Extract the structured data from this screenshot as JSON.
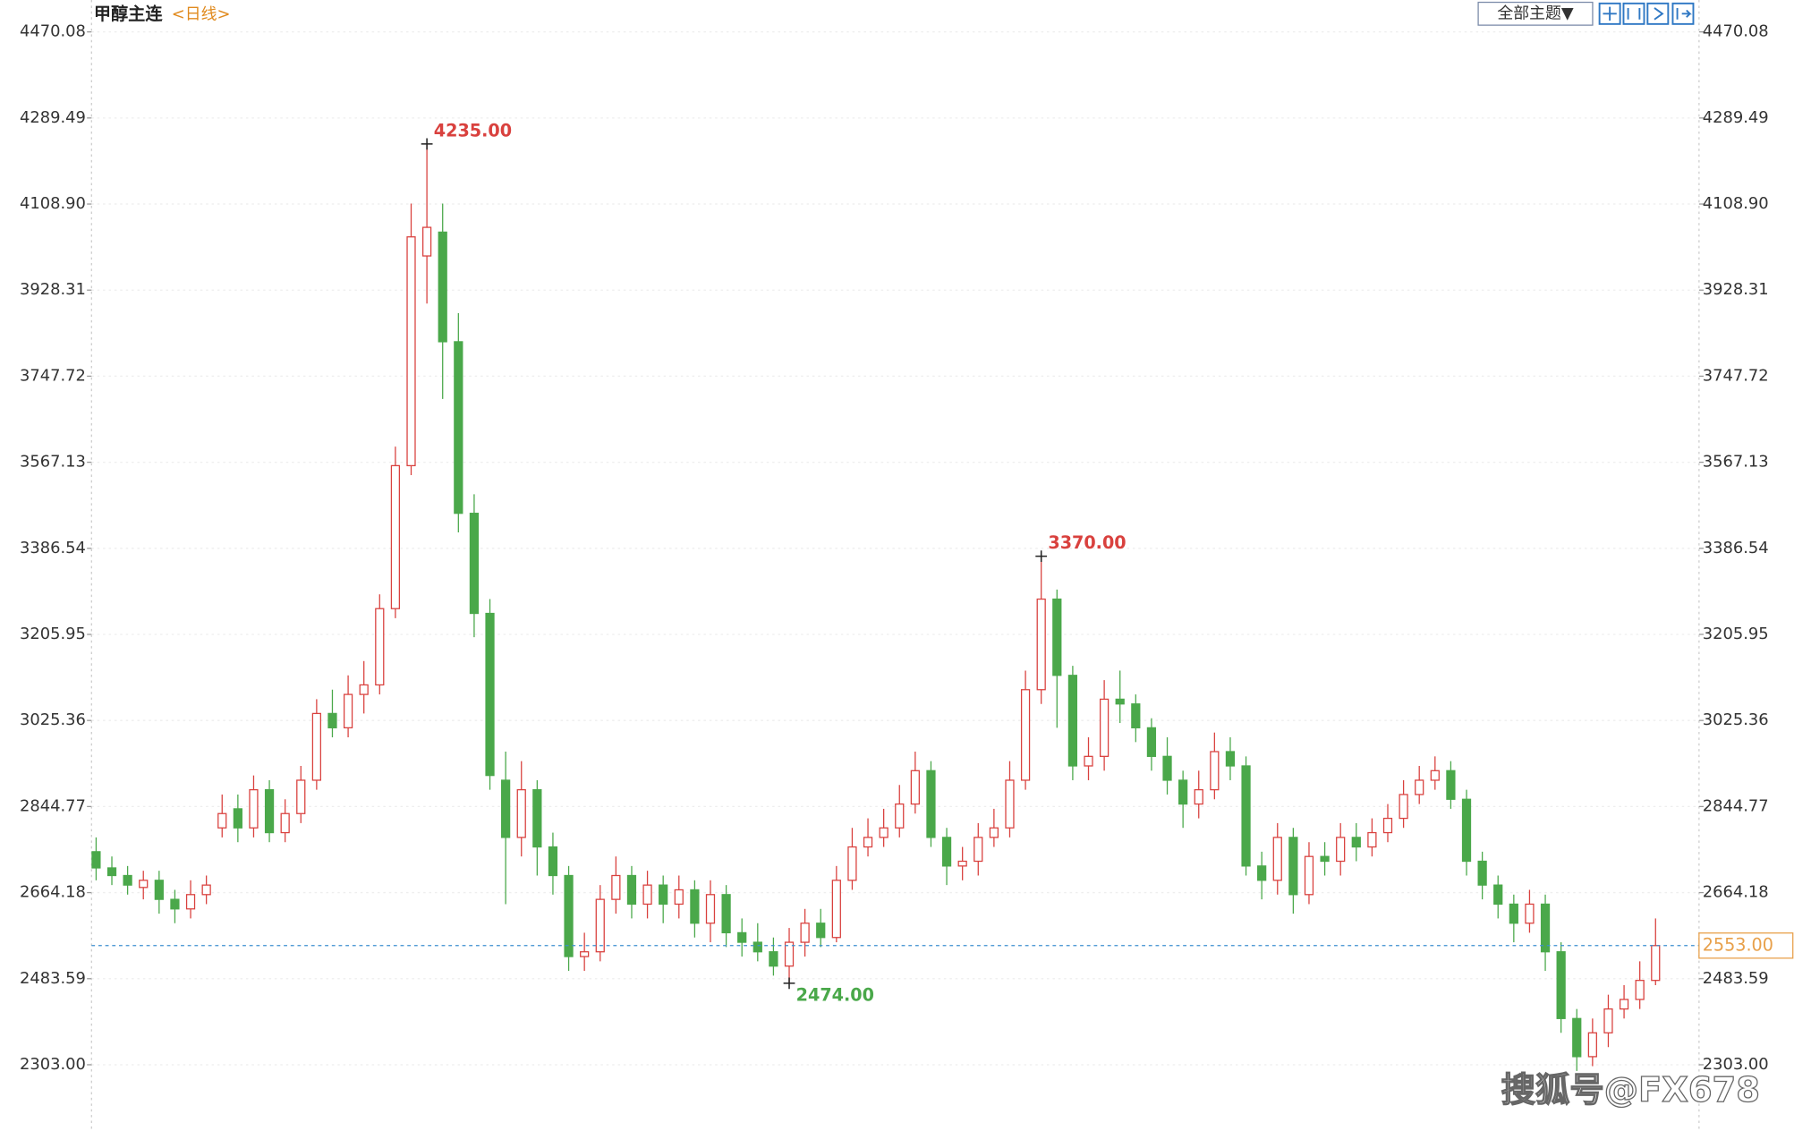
{
  "chart_data": {
    "type": "candlestick",
    "title": "甲醇主连",
    "period": "<日线>",
    "toolbar": "全部主题▼",
    "watermark": "搜狐号@FX678",
    "up_color": "#d9413e",
    "down_color": "#4aa84a",
    "grid": true,
    "ylim": [
      2164,
      4537
    ],
    "yticks": [
      4470.08,
      4289.49,
      {
        "value": 4108.9,
        "label": "4108.90"
      },
      3928.31,
      3747.72,
      3567.13,
      3386.54,
      3205.95,
      3025.36,
      2844.77,
      2664.18,
      2483.59,
      {
        "value": 2303,
        "label": "2303.00"
      }
    ],
    "open": [
      2750,
      2716,
      2700,
      2675,
      2690,
      2650,
      2630,
      2660,
      2800,
      2840,
      2800,
      2880,
      2790,
      2830,
      2900,
      3040,
      3010,
      3080,
      3100,
      3260,
      3560,
      4000,
      4050,
      3820,
      3460,
      3250,
      2900,
      2780,
      2880,
      2760,
      2700,
      2530,
      2540,
      2650,
      2700,
      2640,
      2680,
      2640,
      2670,
      2600,
      2660,
      2580,
      2560,
      2540,
      2510,
      2560,
      2600,
      2570,
      2690,
      2760,
      2780,
      2800,
      2850,
      2920,
      2780,
      2720,
      2730,
      2780,
      2800,
      2900,
      3090,
      3280,
      3120,
      2930,
      2950,
      3070,
      3060,
      3010,
      2950,
      2900,
      2850,
      2880,
      2960,
      2930,
      2720,
      2690,
      2780,
      2660,
      2740,
      2730,
      2780,
      2760,
      2790,
      2820,
      2870,
      2900,
      2920,
      2860,
      2730,
      2680,
      2640,
      2600,
      2640,
      2540,
      2400,
      2320,
      2370,
      2420,
      2440,
      2480
    ],
    "high": [
      2780,
      2740,
      2720,
      2710,
      2710,
      2670,
      2690,
      2700,
      2870,
      2870,
      2910,
      2900,
      2860,
      2930,
      3070,
      3090,
      3120,
      3150,
      3290,
      3600,
      4110,
      4235,
      4110,
      3880,
      3500,
      3280,
      2960,
      2940,
      2900,
      2790,
      2720,
      2580,
      2680,
      2740,
      2720,
      2710,
      2700,
      2700,
      2690,
      2690,
      2680,
      2610,
      2600,
      2570,
      2590,
      2630,
      2630,
      2720,
      2800,
      2820,
      2840,
      2890,
      2960,
      2940,
      2800,
      2760,
      2810,
      2840,
      2940,
      3130,
      3370,
      3300,
      3140,
      2990,
      3110,
      3130,
      3080,
      3030,
      2990,
      2920,
      2920,
      3000,
      2990,
      2950,
      2750,
      2810,
      2800,
      2770,
      2770,
      2810,
      2810,
      2820,
      2850,
      2900,
      2930,
      2950,
      2940,
      2880,
      2750,
      2700,
      2660,
      2670,
      2660,
      2560,
      2420,
      2400,
      2450,
      2470,
      2520,
      2610
    ],
    "low": [
      2690,
      2680,
      2660,
      2650,
      2620,
      2600,
      2610,
      2640,
      2780,
      2770,
      2780,
      2770,
      2770,
      2810,
      2880,
      2990,
      2990,
      3040,
      3080,
      3240,
      3540,
      3900,
      3700,
      3420,
      3200,
      2880,
      2640,
      2740,
      2700,
      2660,
      2500,
      2500,
      2520,
      2620,
      2610,
      2610,
      2600,
      2610,
      2570,
      2560,
      2550,
      2530,
      2520,
      2490,
      2474,
      2530,
      2550,
      2560,
      2670,
      2740,
      2760,
      2780,
      2830,
      2760,
      2680,
      2690,
      2700,
      2760,
      2780,
      2880,
      3060,
      3010,
      2900,
      2900,
      2920,
      3020,
      2980,
      2920,
      2870,
      2800,
      2820,
      2860,
      2900,
      2700,
      2650,
      2660,
      2620,
      2640,
      2700,
      2700,
      2730,
      2740,
      2770,
      2800,
      2850,
      2880,
      2840,
      2700,
      2650,
      2610,
      2560,
      2580,
      2500,
      2370,
      2290,
      2300,
      2340,
      2400,
      2420,
      2470
    ],
    "close": [
      2716,
      2700,
      2680,
      2690,
      2650,
      2630,
      2660,
      2680,
      2830,
      2800,
      2880,
      2790,
      2830,
      2900,
      3040,
      3010,
      3080,
      3100,
      3260,
      3560,
      4040,
      4060,
      3820,
      3460,
      3250,
      2910,
      2780,
      2880,
      2760,
      2700,
      2530,
      2540,
      2650,
      2700,
      2640,
      2680,
      2640,
      2670,
      2600,
      2660,
      2580,
      2560,
      2540,
      2510,
      2560,
      2600,
      2570,
      2690,
      2760,
      2780,
      2800,
      2850,
      2920,
      2780,
      2720,
      2730,
      2780,
      2800,
      2900,
      3090,
      3280,
      3120,
      2930,
      2950,
      3070,
      3060,
      3010,
      2950,
      2900,
      2850,
      2880,
      2960,
      2930,
      2720,
      2690,
      2780,
      2660,
      2740,
      2730,
      2780,
      2760,
      2790,
      2820,
      2870,
      2900,
      2920,
      2860,
      2730,
      2680,
      2640,
      2600,
      2640,
      2540,
      2400,
      2320,
      2370,
      2420,
      2440,
      2480,
      2553
    ],
    "annotations": [
      {
        "value": 4235,
        "label": "4235.00"
      },
      {
        "value": 3370,
        "label": "3370.00"
      },
      {
        "value": 2474,
        "label": "2474.00"
      }
    ],
    "last_price": {
      "value": 2553,
      "label": "2553.00"
    }
  }
}
